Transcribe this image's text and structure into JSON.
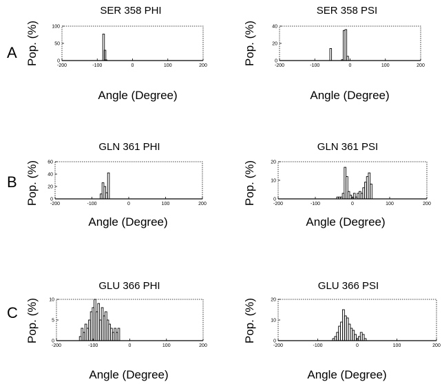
{
  "figure": {
    "row_labels": [
      "A",
      "B",
      "C"
    ]
  },
  "chart_data": [
    {
      "type": "histogram",
      "title": "SER 358 PHI",
      "xlabel": "Angle (Degree)",
      "ylabel": "Pop. (%)",
      "xlim": [
        -200,
        200
      ],
      "ylim": [
        0,
        100
      ],
      "xticks": [
        "-200",
        "-100",
        "0",
        "100",
        "200"
      ],
      "yticks": [
        "0",
        "50",
        "100"
      ],
      "bin_width": 5,
      "bins": [
        {
          "x": -85,
          "y": 0
        },
        {
          "x": -82,
          "y": 77
        },
        {
          "x": -78,
          "y": 30
        },
        {
          "x": -75,
          "y": 2
        }
      ]
    },
    {
      "type": "histogram",
      "title": "SER 358 PSI",
      "xlabel": "Angle (Degree)",
      "ylabel": "Pop. (%)",
      "xlim": [
        -200,
        200
      ],
      "ylim": [
        0,
        40
      ],
      "xticks": [
        "-200",
        "-100",
        "0",
        "100",
        "200"
      ],
      "yticks": [
        "0",
        "20",
        "40"
      ],
      "bin_width": 5,
      "bins": [
        {
          "x": -55,
          "y": 14
        },
        {
          "x": -50,
          "y": 0
        },
        {
          "x": -22,
          "y": 1
        },
        {
          "x": -17,
          "y": 35
        },
        {
          "x": -12,
          "y": 36
        },
        {
          "x": -7,
          "y": 5
        },
        {
          "x": -2,
          "y": 0
        }
      ]
    },
    {
      "type": "histogram",
      "title": "GLN 361 PHI",
      "xlabel": "Angle (Degree)",
      "ylabel": "Pop. (%)",
      "xlim": [
        -200,
        200
      ],
      "ylim": [
        0,
        60
      ],
      "xticks": [
        "-200",
        "-100",
        "0",
        "100",
        "200"
      ],
      "yticks": [
        "0",
        "20",
        "40",
        "60"
      ],
      "bin_width": 5,
      "bins": [
        {
          "x": -75,
          "y": 8
        },
        {
          "x": -70,
          "y": 26
        },
        {
          "x": -65,
          "y": 20
        },
        {
          "x": -60,
          "y": 10
        },
        {
          "x": -55,
          "y": 42
        },
        {
          "x": -50,
          "y": 0
        }
      ]
    },
    {
      "type": "histogram",
      "title": "GLN 361 PSI",
      "xlabel": "Angle (Degree)",
      "ylabel": "Pop. (%)",
      "xlim": [
        -200,
        200
      ],
      "ylim": [
        0,
        20
      ],
      "xticks": [
        "-200",
        "-100",
        "0",
        "100",
        "200"
      ],
      "yticks": [
        "0",
        "10",
        "20"
      ],
      "bin_width": 5,
      "bins": [
        {
          "x": -40,
          "y": 1
        },
        {
          "x": -35,
          "y": 1
        },
        {
          "x": -30,
          "y": 1
        },
        {
          "x": -25,
          "y": 3
        },
        {
          "x": -20,
          "y": 17
        },
        {
          "x": -15,
          "y": 12
        },
        {
          "x": -10,
          "y": 4
        },
        {
          "x": -5,
          "y": 2
        },
        {
          "x": 0,
          "y": 1
        },
        {
          "x": 5,
          "y": 3
        },
        {
          "x": 10,
          "y": 1
        },
        {
          "x": 15,
          "y": 3
        },
        {
          "x": 20,
          "y": 4
        },
        {
          "x": 25,
          "y": 3
        },
        {
          "x": 30,
          "y": 6
        },
        {
          "x": 35,
          "y": 9
        },
        {
          "x": 40,
          "y": 12
        },
        {
          "x": 45,
          "y": 14
        },
        {
          "x": 50,
          "y": 8
        },
        {
          "x": 55,
          "y": 0
        }
      ]
    },
    {
      "type": "histogram",
      "title": "GLU 366 PHI",
      "xlabel": "Angle (Degree)",
      "ylabel": "Pop. (%)",
      "xlim": [
        -200,
        200
      ],
      "ylim": [
        0,
        10
      ],
      "xticks": [
        "-200",
        "-100",
        "0",
        "100",
        "200"
      ],
      "yticks": [
        "0",
        "5",
        "10"
      ],
      "bin_width": 5,
      "bins": [
        {
          "x": -135,
          "y": 1
        },
        {
          "x": -130,
          "y": 3
        },
        {
          "x": -125,
          "y": 2
        },
        {
          "x": -120,
          "y": 4
        },
        {
          "x": -115,
          "y": 3
        },
        {
          "x": -110,
          "y": 5
        },
        {
          "x": -105,
          "y": 7
        },
        {
          "x": -100,
          "y": 8
        },
        {
          "x": -95,
          "y": 10
        },
        {
          "x": -90,
          "y": 7
        },
        {
          "x": -85,
          "y": 9
        },
        {
          "x": -80,
          "y": 5
        },
        {
          "x": -75,
          "y": 8
        },
        {
          "x": -70,
          "y": 6
        },
        {
          "x": -65,
          "y": 7
        },
        {
          "x": -60,
          "y": 5
        },
        {
          "x": -55,
          "y": 4
        },
        {
          "x": -50,
          "y": 3
        },
        {
          "x": -45,
          "y": 2
        },
        {
          "x": -40,
          "y": 3
        },
        {
          "x": -35,
          "y": 2
        },
        {
          "x": -30,
          "y": 3
        }
      ]
    },
    {
      "type": "histogram",
      "title": "GLU 366 PSI",
      "xlabel": "Angle (Degree)",
      "ylabel": "Pop. (%)",
      "xlim": [
        -200,
        200
      ],
      "ylim": [
        0,
        20
      ],
      "xticks": [
        "-200",
        "-100",
        "0",
        "100",
        "200"
      ],
      "yticks": [
        "0",
        "10",
        "20"
      ],
      "bin_width": 5,
      "bins": [
        {
          "x": -60,
          "y": 1
        },
        {
          "x": -55,
          "y": 2
        },
        {
          "x": -50,
          "y": 4
        },
        {
          "x": -45,
          "y": 7
        },
        {
          "x": -40,
          "y": 9
        },
        {
          "x": -35,
          "y": 15
        },
        {
          "x": -30,
          "y": 12
        },
        {
          "x": -25,
          "y": 11
        },
        {
          "x": -20,
          "y": 8
        },
        {
          "x": -15,
          "y": 6
        },
        {
          "x": -10,
          "y": 5
        },
        {
          "x": -5,
          "y": 3
        },
        {
          "x": 0,
          "y": 1
        },
        {
          "x": 5,
          "y": 2
        },
        {
          "x": 10,
          "y": 4
        },
        {
          "x": 15,
          "y": 3
        },
        {
          "x": 20,
          "y": 1
        },
        {
          "x": 25,
          "y": 0
        }
      ]
    }
  ]
}
